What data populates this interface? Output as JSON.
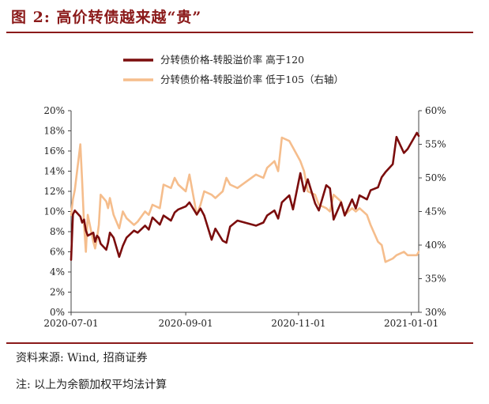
{
  "figure": {
    "title": "图 2:  高价转债越来越“贵”",
    "source": "资料来源:  Wind,  招商证券",
    "note": "注:  以上为余额加权平均法计算"
  },
  "colors": {
    "series_high": "#7b0d0d",
    "series_low": "#f5bd8c",
    "accent": "#8b1a1a"
  },
  "chart_data": {
    "type": "line",
    "xlim": [
      "2020-07-01",
      "2021-01-05"
    ],
    "x_ticks": [
      "2020-07-01",
      "2020-09-01",
      "2020-11-01",
      "2021-01-01"
    ],
    "y_left": {
      "lim": [
        0,
        20
      ],
      "ticks": [
        "0%",
        "2%",
        "4%",
        "6%",
        "8%",
        "10%",
        "12%",
        "14%",
        "16%",
        "18%",
        "20%"
      ]
    },
    "y_right": {
      "lim": [
        30,
        60
      ],
      "ticks": [
        "30%",
        "35%",
        "40%",
        "45%",
        "50%",
        "55%",
        "60%"
      ]
    },
    "legend_position": "top-center",
    "series": [
      {
        "name": "分转债价格-转股溢价率 高于120",
        "axis": "left",
        "x": [
          "2020-07-01",
          "2020-07-02",
          "2020-07-03",
          "2020-07-06",
          "2020-07-07",
          "2020-07-08",
          "2020-07-09",
          "2020-07-10",
          "2020-07-13",
          "2020-07-14",
          "2020-07-15",
          "2020-07-16",
          "2020-07-17",
          "2020-07-20",
          "2020-07-21",
          "2020-07-22",
          "2020-07-24",
          "2020-07-27",
          "2020-07-29",
          "2020-07-31",
          "2020-08-04",
          "2020-08-06",
          "2020-08-10",
          "2020-08-12",
          "2020-08-14",
          "2020-08-18",
          "2020-08-20",
          "2020-08-24",
          "2020-08-26",
          "2020-08-28",
          "2020-09-01",
          "2020-09-03",
          "2020-09-07",
          "2020-09-09",
          "2020-09-11",
          "2020-09-15",
          "2020-09-17",
          "2020-09-21",
          "2020-09-23",
          "2020-09-25",
          "2020-09-29",
          "2020-10-09",
          "2020-10-13",
          "2020-10-15",
          "2020-10-19",
          "2020-10-21",
          "2020-10-23",
          "2020-10-27",
          "2020-10-29",
          "2020-11-02",
          "2020-11-04",
          "2020-11-06",
          "2020-11-10",
          "2020-11-12",
          "2020-11-16",
          "2020-11-18",
          "2020-11-20",
          "2020-11-24",
          "2020-11-26",
          "2020-11-30",
          "2020-12-02",
          "2020-12-04",
          "2020-12-08",
          "2020-12-10",
          "2020-12-14",
          "2020-12-16",
          "2020-12-18",
          "2020-12-22",
          "2020-12-24",
          "2020-12-28",
          "2020-12-30",
          "2021-01-04",
          "2021-01-05"
        ],
        "y": [
          5.2,
          9.7,
          10.1,
          9.5,
          8.9,
          9.2,
          8.1,
          7.6,
          7.9,
          7.0,
          7.6,
          7.4,
          6.8,
          6.2,
          6.9,
          7.9,
          7.4,
          5.5,
          6.6,
          7.4,
          8.1,
          7.9,
          8.6,
          8.2,
          9.4,
          8.7,
          9.6,
          9.1,
          9.9,
          10.2,
          10.5,
          10.9,
          9.7,
          10.3,
          9.6,
          7.2,
          8.3,
          7.1,
          6.9,
          8.5,
          9.1,
          8.6,
          8.9,
          9.6,
          10.1,
          9.3,
          10.9,
          11.6,
          10.2,
          13.8,
          12.0,
          13.2,
          10.8,
          10.1,
          12.6,
          12.3,
          9.2,
          10.9,
          9.6,
          11.2,
          10.3,
          11.6,
          11.2,
          12.1,
          12.4,
          13.4,
          13.9,
          14.7,
          17.4,
          15.8,
          16.2,
          17.8,
          17.5
        ]
      },
      {
        "name": "分转债价格-转股溢价率 低于105（右轴）",
        "axis": "right",
        "x": [
          "2020-07-01",
          "2020-07-02",
          "2020-07-03",
          "2020-07-06",
          "2020-07-07",
          "2020-07-08",
          "2020-07-09",
          "2020-07-10",
          "2020-07-13",
          "2020-07-14",
          "2020-07-15",
          "2020-07-16",
          "2020-07-17",
          "2020-07-20",
          "2020-07-21",
          "2020-07-22",
          "2020-07-24",
          "2020-07-27",
          "2020-07-29",
          "2020-07-31",
          "2020-08-04",
          "2020-08-06",
          "2020-08-10",
          "2020-08-12",
          "2020-08-14",
          "2020-08-18",
          "2020-08-20",
          "2020-08-24",
          "2020-08-26",
          "2020-08-28",
          "2020-09-01",
          "2020-09-03",
          "2020-09-07",
          "2020-09-09",
          "2020-09-11",
          "2020-09-15",
          "2020-09-17",
          "2020-09-21",
          "2020-09-23",
          "2020-09-25",
          "2020-09-29",
          "2020-10-09",
          "2020-10-13",
          "2020-10-15",
          "2020-10-19",
          "2020-10-21",
          "2020-10-23",
          "2020-10-27",
          "2020-10-29",
          "2020-11-02",
          "2020-11-04",
          "2020-11-06",
          "2020-11-10",
          "2020-11-12",
          "2020-11-16",
          "2020-11-18",
          "2020-11-20",
          "2020-11-24",
          "2020-11-26",
          "2020-11-30",
          "2020-12-02",
          "2020-12-04",
          "2020-12-08",
          "2020-12-10",
          "2020-12-14",
          "2020-12-16",
          "2020-12-18",
          "2020-12-22",
          "2020-12-24",
          "2020-12-28",
          "2020-12-30",
          "2021-01-04",
          "2021-01-05"
        ],
        "y": [
          44.5,
          46.8,
          48.2,
          55.0,
          49.5,
          43.0,
          39.0,
          44.5,
          40.5,
          39.5,
          41.0,
          43.0,
          47.5,
          46.5,
          45.5,
          47.0,
          44.5,
          42.5,
          45.0,
          44.0,
          43.0,
          43.5,
          45.0,
          44.5,
          46.0,
          45.5,
          49.0,
          48.5,
          50.0,
          49.0,
          48.0,
          50.5,
          44.5,
          46.0,
          48.0,
          47.5,
          47.0,
          48.0,
          50.0,
          49.0,
          48.5,
          50.5,
          50.0,
          51.5,
          52.5,
          51.0,
          56.0,
          55.5,
          54.5,
          52.5,
          51.0,
          48.0,
          47.5,
          46.0,
          45.5,
          45.0,
          47.5,
          46.5,
          44.5,
          45.5,
          45.0,
          45.5,
          44.5,
          43.0,
          40.5,
          40.0,
          37.5,
          38.0,
          38.5,
          39.0,
          38.5,
          38.5,
          39.0
        ]
      }
    ]
  }
}
